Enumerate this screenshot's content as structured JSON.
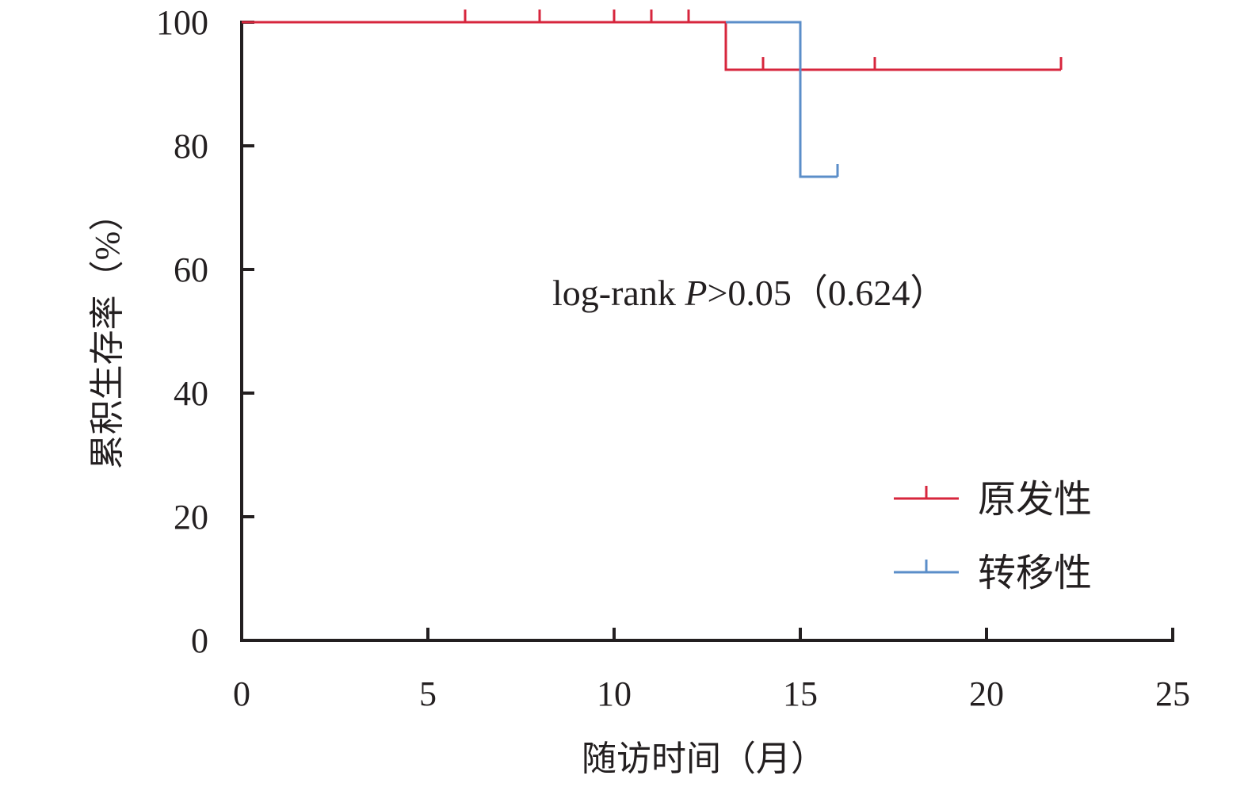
{
  "chart_data": {
    "type": "line",
    "subtype": "kaplan-meier",
    "xlabel": "随访时间（月）",
    "ylabel": "累积生存率（%）",
    "xlim": [
      0,
      25
    ],
    "ylim": [
      0,
      100
    ],
    "xticks": [
      0,
      5,
      10,
      15,
      20,
      25
    ],
    "yticks": [
      0,
      20,
      40,
      60,
      80,
      100
    ],
    "grid": false,
    "legend_position": "bottom-right",
    "annotation": {
      "prefix": "log-rank ",
      "p_symbol": "P",
      "suffix": ">0.05（0.624）"
    },
    "series": [
      {
        "name": "原发性",
        "color": "#d7263d",
        "steps": [
          [
            0,
            100
          ],
          [
            13,
            100
          ],
          [
            13,
            92.3
          ],
          [
            22,
            92.3
          ]
        ],
        "censored": [
          [
            6,
            100
          ],
          [
            8,
            100
          ],
          [
            10,
            100
          ],
          [
            11,
            100
          ],
          [
            12,
            100
          ],
          [
            14,
            92.3
          ],
          [
            15,
            92.3
          ],
          [
            17,
            92.3
          ],
          [
            22,
            92.3
          ]
        ]
      },
      {
        "name": "转移性",
        "color": "#5b8ec9",
        "steps": [
          [
            13,
            100
          ],
          [
            15,
            100
          ],
          [
            15,
            75
          ],
          [
            16,
            75
          ]
        ],
        "censored": [
          [
            16,
            75
          ]
        ]
      }
    ]
  }
}
